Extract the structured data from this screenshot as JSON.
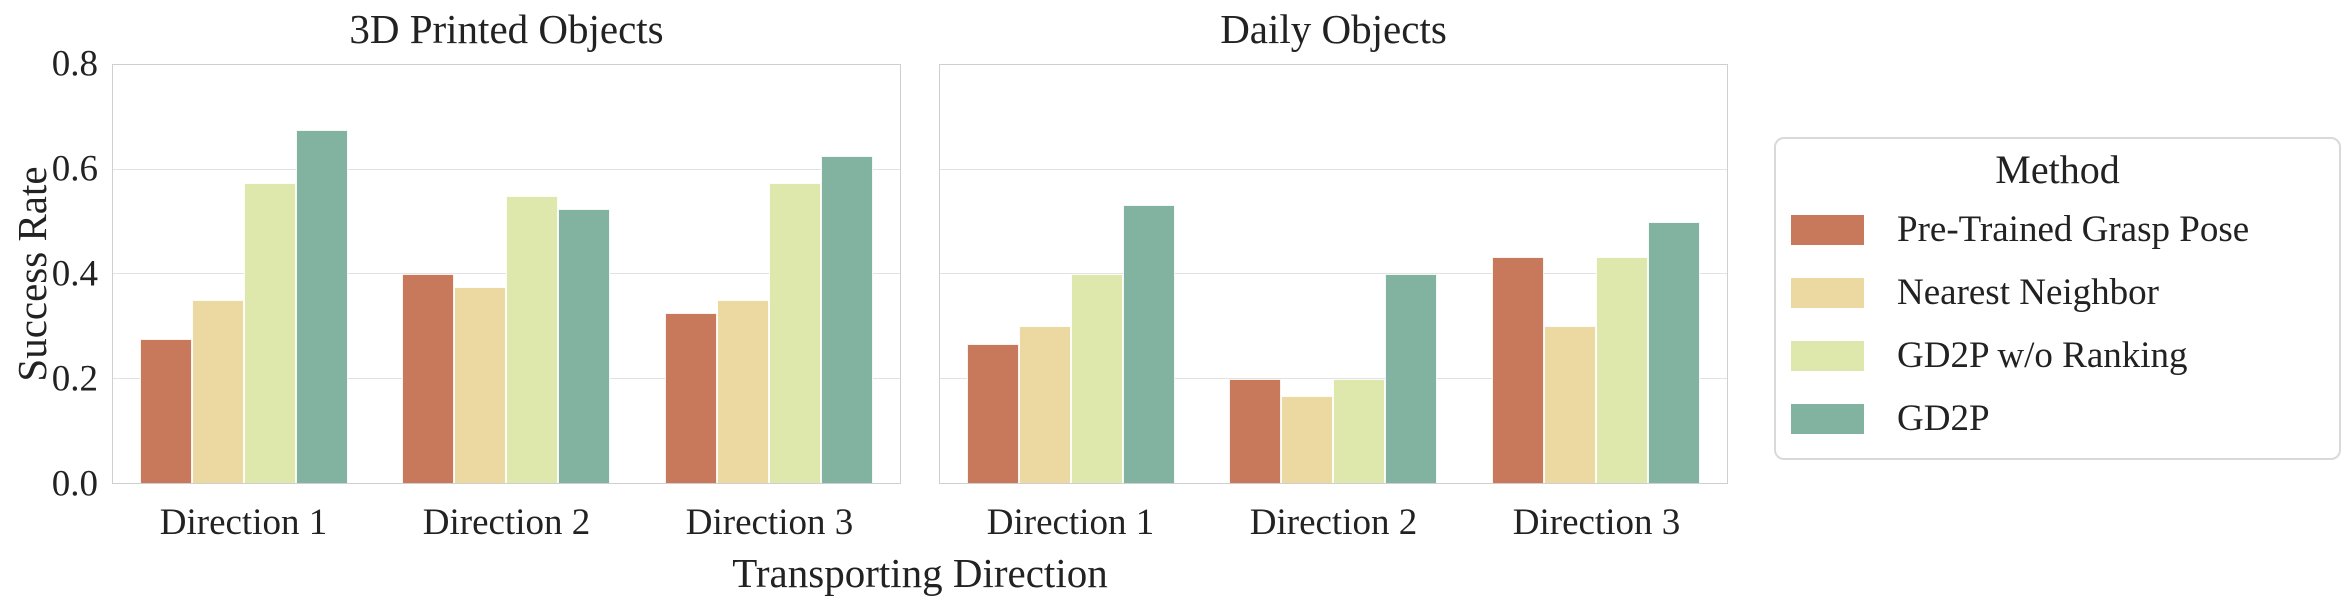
{
  "figure": {
    "ylabel": "Success Rate",
    "xlabel": "Transporting Direction",
    "background": "#ffffff",
    "text_color": "#222222",
    "grid_color": "#e2e2e2",
    "spine_color": "#cfcfcf"
  },
  "legend": {
    "title": "Method",
    "position": "right of axes",
    "entries": [
      {
        "label": "Pre-Trained Grasp Pose",
        "color": "#C9795B"
      },
      {
        "label": "Nearest Neighbor",
        "color": "#EBD9A1"
      },
      {
        "label": "GD2P w/o Ranking",
        "color": "#DEE8AC"
      },
      {
        "label": "GD2P",
        "color": "#82B2A0"
      }
    ]
  },
  "chart_data": [
    {
      "type": "bar",
      "title": "3D Printed Objects",
      "xlabel": "Transporting Direction",
      "ylabel": "Success Rate",
      "categories": [
        "Direction 1",
        "Direction 2",
        "Direction 3"
      ],
      "series": [
        {
          "name": "Pre-Trained Grasp Pose",
          "color": "#C9795B",
          "values": [
            0.275,
            0.4,
            0.325
          ]
        },
        {
          "name": "Nearest Neighbor",
          "color": "#EBD9A1",
          "values": [
            0.35,
            0.375,
            0.35
          ]
        },
        {
          "name": "GD2P w/o Ranking",
          "color": "#DEE8AC",
          "values": [
            0.575,
            0.55,
            0.575
          ]
        },
        {
          "name": "GD2P",
          "color": "#82B2A0",
          "values": [
            0.675,
            0.525,
            0.625
          ]
        }
      ],
      "ylim": [
        0,
        0.8
      ],
      "yticks": [
        0.0,
        0.2,
        0.4,
        0.6,
        0.8
      ],
      "grid": true,
      "show_yticklabels": true
    },
    {
      "type": "bar",
      "title": "Daily Objects",
      "xlabel": "Transporting Direction",
      "ylabel": "Success Rate",
      "categories": [
        "Direction 1",
        "Direction 2",
        "Direction 3"
      ],
      "series": [
        {
          "name": "Pre-Trained Grasp Pose",
          "color": "#C9795B",
          "values": [
            0.267,
            0.2,
            0.433
          ]
        },
        {
          "name": "Nearest Neighbor",
          "color": "#EBD9A1",
          "values": [
            0.3,
            0.167,
            0.3
          ]
        },
        {
          "name": "GD2P w/o Ranking",
          "color": "#DEE8AC",
          "values": [
            0.4,
            0.2,
            0.433
          ]
        },
        {
          "name": "GD2P",
          "color": "#82B2A0",
          "values": [
            0.533,
            0.4,
            0.5
          ]
        }
      ],
      "ylim": [
        0,
        0.8
      ],
      "yticks": [
        0.0,
        0.2,
        0.4,
        0.6,
        0.8
      ],
      "grid": true,
      "show_yticklabels": false
    }
  ]
}
